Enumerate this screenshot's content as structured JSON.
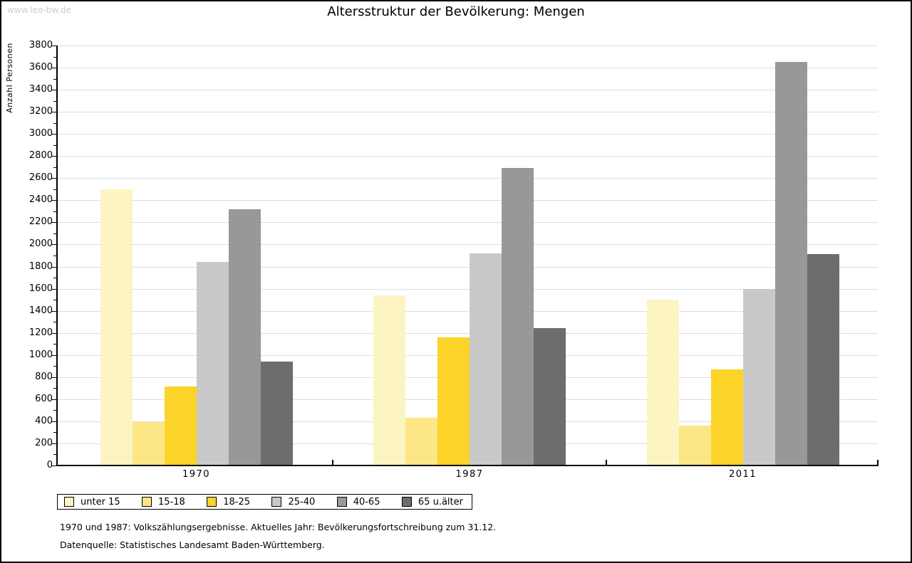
{
  "watermark": "www.leo-bw.de",
  "footnotes": [
    "1970 und 1987: Volkszählungsergebnisse. Aktuelles Jahr: Bevölkerungsfortschreibung zum 31.12.",
    "Datenquelle: Statistisches Landesamt Baden-Württemberg."
  ],
  "chart_data": {
    "type": "bar",
    "title": "Altersstruktur der Bevölkerung: Mengen",
    "ylabel": "Anzahl Personen",
    "xlabel": "",
    "categories": [
      "1970",
      "1987",
      "2011"
    ],
    "series": [
      {
        "name": "unter 15",
        "color": "#FCF4C2",
        "values": [
          2500,
          1540,
          1500
        ]
      },
      {
        "name": "15-18",
        "color": "#FCE685",
        "values": [
          390,
          430,
          360
        ]
      },
      {
        "name": "18-25",
        "color": "#FCD328",
        "values": [
          715,
          1160,
          870
        ]
      },
      {
        "name": "25-40",
        "color": "#C9C9C9",
        "values": [
          1840,
          1920,
          1600
        ]
      },
      {
        "name": "40-65",
        "color": "#989898",
        "values": [
          2320,
          2690,
          3650
        ]
      },
      {
        "name": "65 u.älter",
        "color": "#6D6D6D",
        "values": [
          940,
          1240,
          1910
        ]
      }
    ],
    "ylim": [
      0,
      3800
    ],
    "ytick_step": 200,
    "yminor_step": 100,
    "grid": true,
    "legend_position": "bottom-left"
  }
}
